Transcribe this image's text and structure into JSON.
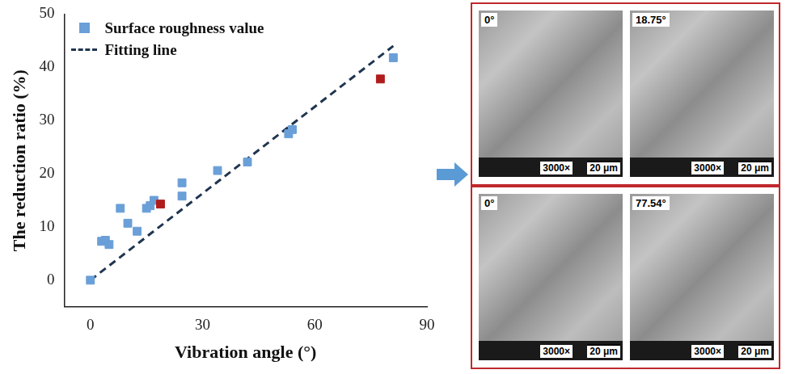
{
  "chart_data": {
    "type": "scatter",
    "x_label": "Vibration angle (°)",
    "y_label": "The reduction ratio (%)",
    "xlim": [
      -7,
      90
    ],
    "xticks": [
      0,
      30,
      60,
      90
    ],
    "ylim": [
      -5,
      50
    ],
    "yticks": [
      0,
      10,
      20,
      30,
      40,
      50
    ],
    "grid": false,
    "legend": "upper left",
    "series": [
      {
        "name": "Surface roughness value",
        "type": "scatter",
        "marker": "square",
        "color": "#6a9fd8",
        "x": [
          0,
          3,
          4,
          5,
          8,
          10,
          12.5,
          15,
          16,
          17,
          18.75,
          24.5,
          24.5,
          34,
          42,
          53,
          54,
          77.54,
          81
        ],
        "values": [
          0,
          7.3,
          7.5,
          6.7,
          13.5,
          10.7,
          9.2,
          13.5,
          14,
          15,
          14.3,
          18.3,
          15.8,
          20.6,
          22.2,
          27.5,
          28.3,
          37.8,
          41.8
        ],
        "colors": [
          "#6a9fd8",
          "#6a9fd8",
          "#6a9fd8",
          "#6a9fd8",
          "#6a9fd8",
          "#6a9fd8",
          "#6a9fd8",
          "#6a9fd8",
          "#6a9fd8",
          "#6a9fd8",
          "#b01c1c",
          "#6a9fd8",
          "#6a9fd8",
          "#6a9fd8",
          "#6a9fd8",
          "#6a9fd8",
          "#6a9fd8",
          "#b01c1c",
          "#6a9fd8"
        ]
      },
      {
        "name": "Fitting line",
        "type": "line",
        "line_style": "dashed",
        "color": "#1f3550",
        "x": [
          0,
          81
        ],
        "values": [
          0,
          44
        ]
      }
    ]
  },
  "sem_images": [
    {
      "angle": "0°",
      "magnification": "3000×",
      "scale_bar": "20 μm"
    },
    {
      "angle": "18.75°",
      "magnification": "3000×",
      "scale_bar": "20 μm"
    },
    {
      "angle": "0°",
      "magnification": "3000×",
      "scale_bar": "20 μm"
    },
    {
      "angle": "77.54°",
      "magnification": "3000×",
      "scale_bar": "20 μm"
    }
  ]
}
